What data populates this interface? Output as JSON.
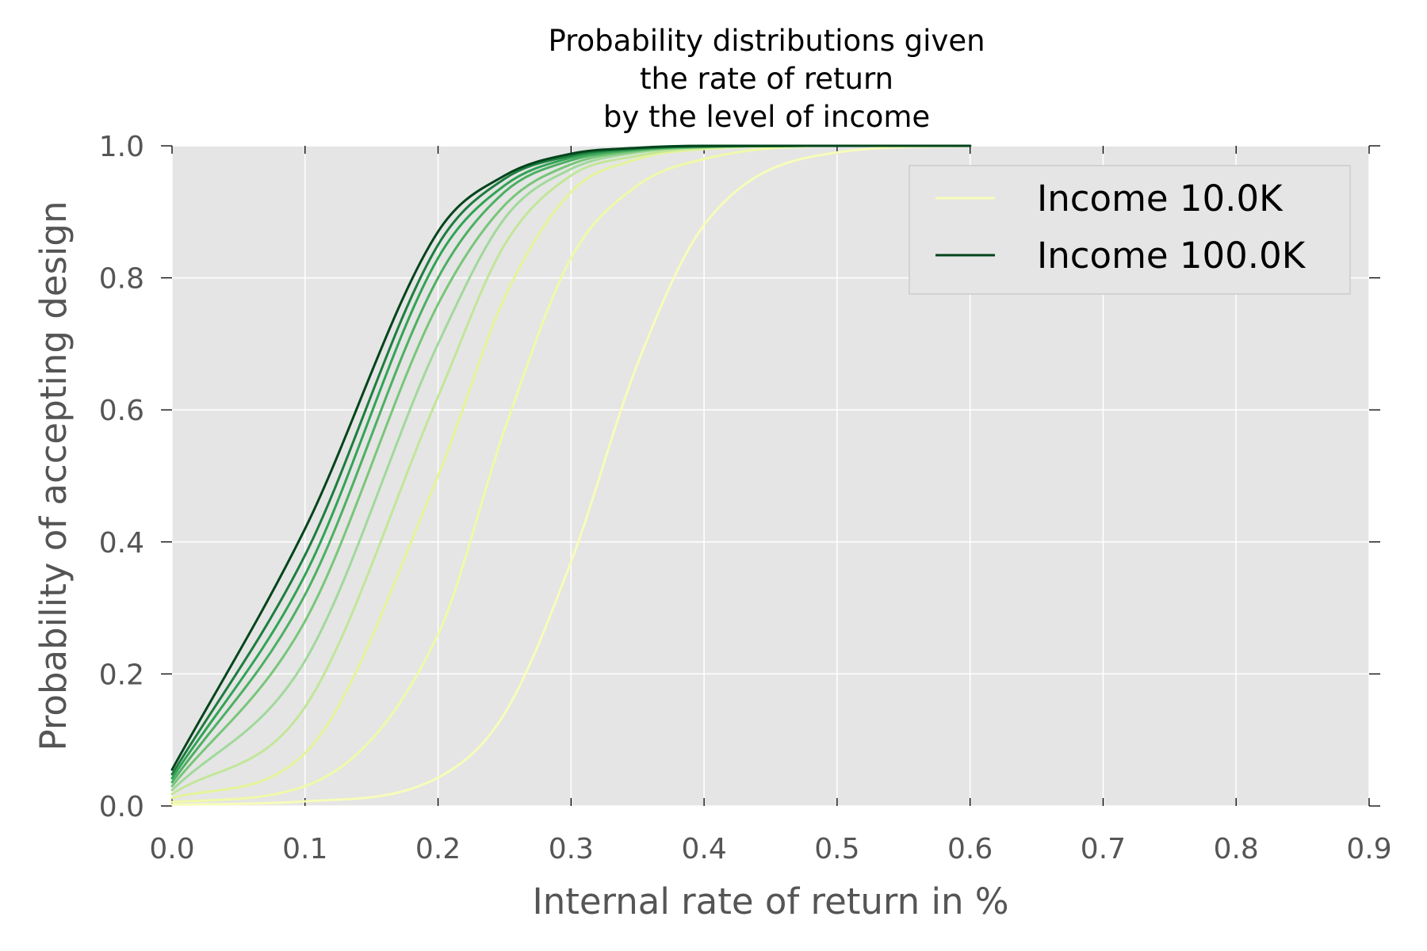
{
  "chart_data": {
    "type": "line",
    "title_lines": [
      "Probability distributions given",
      "the rate of return",
      "by the level of income"
    ],
    "xlabel": "Internal rate of return in %",
    "ylabel": "Probability of accepting design",
    "xlim": [
      0.0,
      0.9
    ],
    "ylim": [
      0.0,
      1.0
    ],
    "xticks": [
      "0.0",
      "0.1",
      "0.2",
      "0.3",
      "0.4",
      "0.5",
      "0.6",
      "0.7",
      "0.8",
      "0.9"
    ],
    "yticks": [
      "0.0",
      "0.2",
      "0.4",
      "0.6",
      "0.8",
      "1.0"
    ],
    "grid": true,
    "legend_position": "top-right",
    "background_color": "#e5e5e5",
    "grid_color": "#ffffff",
    "series": [
      {
        "name": "Income 10.0K",
        "color": "#f7fcb9",
        "in_legend": true,
        "x": [
          0.0,
          0.1,
          0.2,
          0.25,
          0.3,
          0.35,
          0.4,
          0.5,
          0.6
        ],
        "y": [
          0.002,
          0.007,
          0.043,
          0.14,
          0.37,
          0.67,
          0.88,
          0.99,
          1.0
        ]
      },
      {
        "color": "#f0f9a8",
        "in_legend": false,
        "x": [
          0.0,
          0.1,
          0.2,
          0.25,
          0.3,
          0.35,
          0.4,
          0.5,
          0.6
        ],
        "y": [
          0.006,
          0.03,
          0.26,
          0.57,
          0.83,
          0.94,
          0.98,
          1.0,
          1.0
        ]
      },
      {
        "color": "#e3f498",
        "in_legend": false,
        "x": [
          0.0,
          0.1,
          0.2,
          0.25,
          0.3,
          0.35,
          0.4,
          0.5,
          0.6
        ],
        "y": [
          0.012,
          0.08,
          0.5,
          0.77,
          0.93,
          0.98,
          0.995,
          1.0,
          1.0
        ]
      },
      {
        "color": "#c2e699",
        "in_legend": false,
        "x": [
          0.0,
          0.1,
          0.2,
          0.25,
          0.3,
          0.35,
          0.4,
          0.5,
          0.6
        ],
        "y": [
          0.018,
          0.15,
          0.62,
          0.85,
          0.955,
          0.985,
          0.997,
          1.0,
          1.0
        ]
      },
      {
        "color": "#a1d99b",
        "in_legend": false,
        "x": [
          0.0,
          0.1,
          0.2,
          0.25,
          0.3,
          0.35,
          0.4,
          0.5,
          0.6
        ],
        "y": [
          0.024,
          0.22,
          0.7,
          0.89,
          0.965,
          0.99,
          0.998,
          1.0,
          1.0
        ]
      },
      {
        "color": "#78c679",
        "in_legend": false,
        "x": [
          0.0,
          0.1,
          0.2,
          0.25,
          0.3,
          0.35,
          0.4,
          0.5,
          0.6
        ],
        "y": [
          0.03,
          0.28,
          0.76,
          0.91,
          0.972,
          0.992,
          0.998,
          1.0,
          1.0
        ]
      },
      {
        "color": "#4daf62",
        "in_legend": false,
        "x": [
          0.0,
          0.1,
          0.2,
          0.25,
          0.3,
          0.35,
          0.4,
          0.5,
          0.6
        ],
        "y": [
          0.036,
          0.32,
          0.8,
          0.93,
          0.978,
          0.994,
          0.999,
          1.0,
          1.0
        ]
      },
      {
        "color": "#31a354",
        "in_legend": false,
        "x": [
          0.0,
          0.1,
          0.2,
          0.25,
          0.3,
          0.35,
          0.4,
          0.5,
          0.6
        ],
        "y": [
          0.042,
          0.35,
          0.83,
          0.94,
          0.982,
          0.995,
          0.999,
          1.0,
          1.0
        ]
      },
      {
        "color": "#1e7d3f",
        "in_legend": false,
        "x": [
          0.0,
          0.1,
          0.2,
          0.25,
          0.3,
          0.35,
          0.4,
          0.5,
          0.6
        ],
        "y": [
          0.048,
          0.38,
          0.85,
          0.95,
          0.985,
          0.996,
          0.999,
          1.0,
          1.0
        ]
      },
      {
        "name": "Income 100.0K",
        "color": "#00441b",
        "in_legend": true,
        "x": [
          0.0,
          0.1,
          0.2,
          0.25,
          0.3,
          0.35,
          0.4,
          0.5,
          0.6
        ],
        "y": [
          0.055,
          0.42,
          0.87,
          0.955,
          0.988,
          0.997,
          1.0,
          1.0,
          1.0
        ]
      }
    ]
  }
}
